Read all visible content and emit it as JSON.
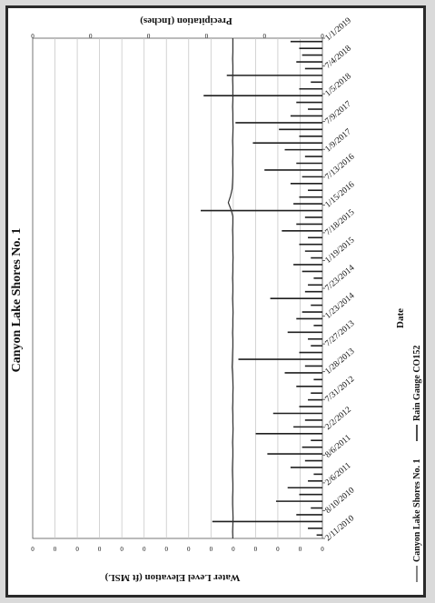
{
  "chart_data": {
    "type": "line",
    "orientation": "rotated-90-clockwise",
    "title": "Canyon Lake Shores No. 1",
    "xlabel": "Date",
    "ylabel_left": "Water Level Elevation (ft MSL)",
    "ylabel_right": "Precipitation (Inches)",
    "x_tick_labels": [
      "2/11/2010",
      "8/10/2010",
      "2/6/2011",
      "8/6/2011",
      "2/2/2012",
      "7/31/2012",
      "1/28/2013",
      "7/27/2013",
      "1/23/2014",
      "7/23/2014",
      "1/19/2015",
      "7/18/2015",
      "1/15/2016",
      "7/13/2016",
      "1/9/2017",
      "7/9/2017",
      "1/5/2018",
      "7/4/2018",
      "1/1/2019"
    ],
    "y_left_ticks": [
      "0",
      "0",
      "0",
      "0",
      "0",
      "0",
      "0",
      "0",
      "0",
      "0",
      "0",
      "0",
      "0",
      "0"
    ],
    "y_right_ticks": [
      "0",
      "0",
      "0",
      "0",
      "0",
      "0"
    ],
    "y_right_lim": [
      0,
      10
    ],
    "grid": true,
    "legend_position": "bottom",
    "series": [
      {
        "name": "Canyon Lake Shores No. 1",
        "axis": "left",
        "values": [
          4.02,
          4.03,
          4.02,
          4.01,
          4.02,
          4.03,
          4.03,
          4.02,
          4.02,
          4.03,
          4.04,
          4.03,
          4.02,
          4.02,
          4.03,
          4.02,
          4.01,
          4.02,
          4.02,
          4.03,
          4.02,
          4.02,
          4.01,
          4.02,
          4.03,
          4.05,
          4.04,
          4.03,
          4.02,
          4.02,
          4.03,
          4.02,
          4.02,
          4.01,
          4.02,
          4.03,
          4.02,
          4.02,
          4.03,
          4.02,
          4.02,
          4.01,
          4.02,
          4.02,
          4.02,
          4.03,
          4.02,
          4.02,
          4.1,
          4.22,
          4.12,
          4.05,
          4.03,
          4.02,
          4.02,
          4.03,
          4.02,
          4.02,
          4.03,
          4.02,
          4.01,
          4.02,
          4.02,
          4.03,
          4.02,
          4.02,
          4.02,
          4.03,
          4.02,
          4.02,
          4.03,
          4.02,
          4.02,
          4.02
        ]
      },
      {
        "name": "Rain Gauge CO152",
        "axis": "right",
        "values": [
          0.2,
          0.5,
          3.8,
          0.9,
          0.4,
          1.6,
          0.8,
          1.2,
          0.5,
          0.3,
          1.1,
          0.6,
          1.9,
          0.7,
          0.4,
          2.3,
          1.0,
          0.6,
          1.7,
          0.8,
          0.5,
          0.4,
          0.9,
          0.3,
          1.3,
          0.6,
          2.9,
          0.8,
          0.4,
          0.5,
          1.2,
          0.3,
          0.9,
          0.7,
          0.4,
          1.8,
          0.6,
          0.5,
          0.3,
          0.7,
          1.0,
          0.4,
          0.6,
          0.8,
          0.5,
          1.4,
          0.9,
          0.6,
          4.2,
          1.0,
          0.8,
          0.5,
          1.1,
          0.7,
          2.0,
          0.9,
          0.6,
          1.3,
          2.4,
          0.8,
          1.5,
          3.0,
          1.1,
          0.5,
          0.9,
          4.1,
          0.8,
          0.4,
          3.3,
          0.6,
          0.9,
          0.7,
          0.8,
          1.1
        ]
      }
    ]
  }
}
